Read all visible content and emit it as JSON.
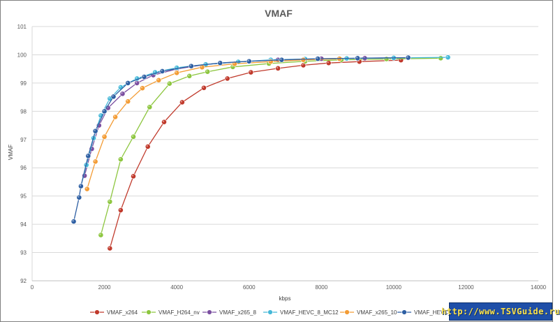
{
  "chart_data": {
    "type": "line",
    "title": "VMAF",
    "xlabel": "kbps",
    "ylabel": "VMAF",
    "xlim": [
      0,
      14000
    ],
    "ylim": [
      92,
      101
    ],
    "xticks": [
      0,
      2000,
      4000,
      6000,
      8000,
      10000,
      12000,
      14000
    ],
    "yticks": [
      92,
      93,
      94,
      95,
      96,
      97,
      98,
      99,
      100,
      101
    ],
    "grid": "horizontal",
    "legend_position": "bottom",
    "series": [
      {
        "name": "VMAF_x264",
        "color": "#c0392b",
        "points": [
          [
            2150,
            93.15
          ],
          [
            2450,
            94.5
          ],
          [
            2800,
            95.7
          ],
          [
            3200,
            96.75
          ],
          [
            3650,
            97.62
          ],
          [
            4150,
            98.32
          ],
          [
            4750,
            98.83
          ],
          [
            5400,
            99.16
          ],
          [
            6050,
            99.38
          ],
          [
            6800,
            99.52
          ],
          [
            7500,
            99.63
          ],
          [
            8200,
            99.71
          ],
          [
            9050,
            99.76
          ],
          [
            10200,
            99.81
          ]
        ]
      },
      {
        "name": "VMAF_H264_nv",
        "color": "#8dc63f",
        "points": [
          [
            1900,
            93.62
          ],
          [
            2150,
            94.8
          ],
          [
            2450,
            96.3
          ],
          [
            2800,
            97.1
          ],
          [
            3250,
            98.15
          ],
          [
            3800,
            98.98
          ],
          [
            4350,
            99.25
          ],
          [
            4850,
            99.4
          ],
          [
            5550,
            99.57
          ],
          [
            6550,
            99.69
          ],
          [
            7550,
            99.77
          ],
          [
            8550,
            99.82
          ],
          [
            9800,
            99.85
          ],
          [
            11300,
            99.88
          ]
        ]
      },
      {
        "name": "VMAF_x265_8",
        "color": "#7b4fa0",
        "points": [
          [
            1450,
            95.72
          ],
          [
            1650,
            96.67
          ],
          [
            1850,
            97.5
          ],
          [
            2100,
            98.12
          ],
          [
            2500,
            98.62
          ],
          [
            2900,
            99.0
          ],
          [
            3350,
            99.28
          ],
          [
            4000,
            99.5
          ],
          [
            4800,
            99.66
          ],
          [
            5700,
            99.75
          ],
          [
            6800,
            99.82
          ],
          [
            8000,
            99.86
          ],
          [
            9200,
            99.88
          ],
          [
            10400,
            99.9
          ]
        ]
      },
      {
        "name": "VMAF_HEVC_8_MC12",
        "color": "#45b8d8",
        "points": [
          [
            1350,
            95.35
          ],
          [
            1500,
            96.1
          ],
          [
            1700,
            97.05
          ],
          [
            1900,
            97.85
          ],
          [
            2150,
            98.45
          ],
          [
            2450,
            98.85
          ],
          [
            2900,
            99.16
          ],
          [
            3400,
            99.38
          ],
          [
            4000,
            99.54
          ],
          [
            4800,
            99.66
          ],
          [
            5700,
            99.75
          ],
          [
            6600,
            99.82
          ],
          [
            7550,
            99.85
          ],
          [
            8700,
            99.87
          ],
          [
            10000,
            99.89
          ],
          [
            11500,
            99.91
          ]
        ]
      },
      {
        "name": "VMAF_x265_10",
        "color": "#f39c35",
        "points": [
          [
            1520,
            95.25
          ],
          [
            1750,
            96.22
          ],
          [
            2000,
            97.1
          ],
          [
            2300,
            97.8
          ],
          [
            2650,
            98.35
          ],
          [
            3050,
            98.82
          ],
          [
            3500,
            99.1
          ],
          [
            4000,
            99.36
          ],
          [
            4700,
            99.56
          ],
          [
            5600,
            99.68
          ],
          [
            6600,
            99.76
          ],
          [
            7500,
            99.82
          ],
          [
            8500,
            99.86
          ]
        ]
      },
      {
        "name": "VMAF_HEVC_10",
        "color": "#2e5fa3",
        "points": [
          [
            1150,
            94.1
          ],
          [
            1300,
            94.95
          ],
          [
            1350,
            95.35
          ],
          [
            1550,
            96.42
          ],
          [
            1750,
            97.3
          ],
          [
            2000,
            98.0
          ],
          [
            2250,
            98.52
          ],
          [
            2650,
            99.0
          ],
          [
            3100,
            99.22
          ],
          [
            3600,
            99.42
          ],
          [
            4400,
            99.6
          ],
          [
            5200,
            99.71
          ],
          [
            6000,
            99.77
          ],
          [
            6900,
            99.82
          ],
          [
            7900,
            99.86
          ],
          [
            9000,
            99.88
          ],
          [
            10400,
            99.9
          ]
        ]
      }
    ]
  },
  "watermark": {
    "text": "http://www.TSVGuide.ru"
  }
}
